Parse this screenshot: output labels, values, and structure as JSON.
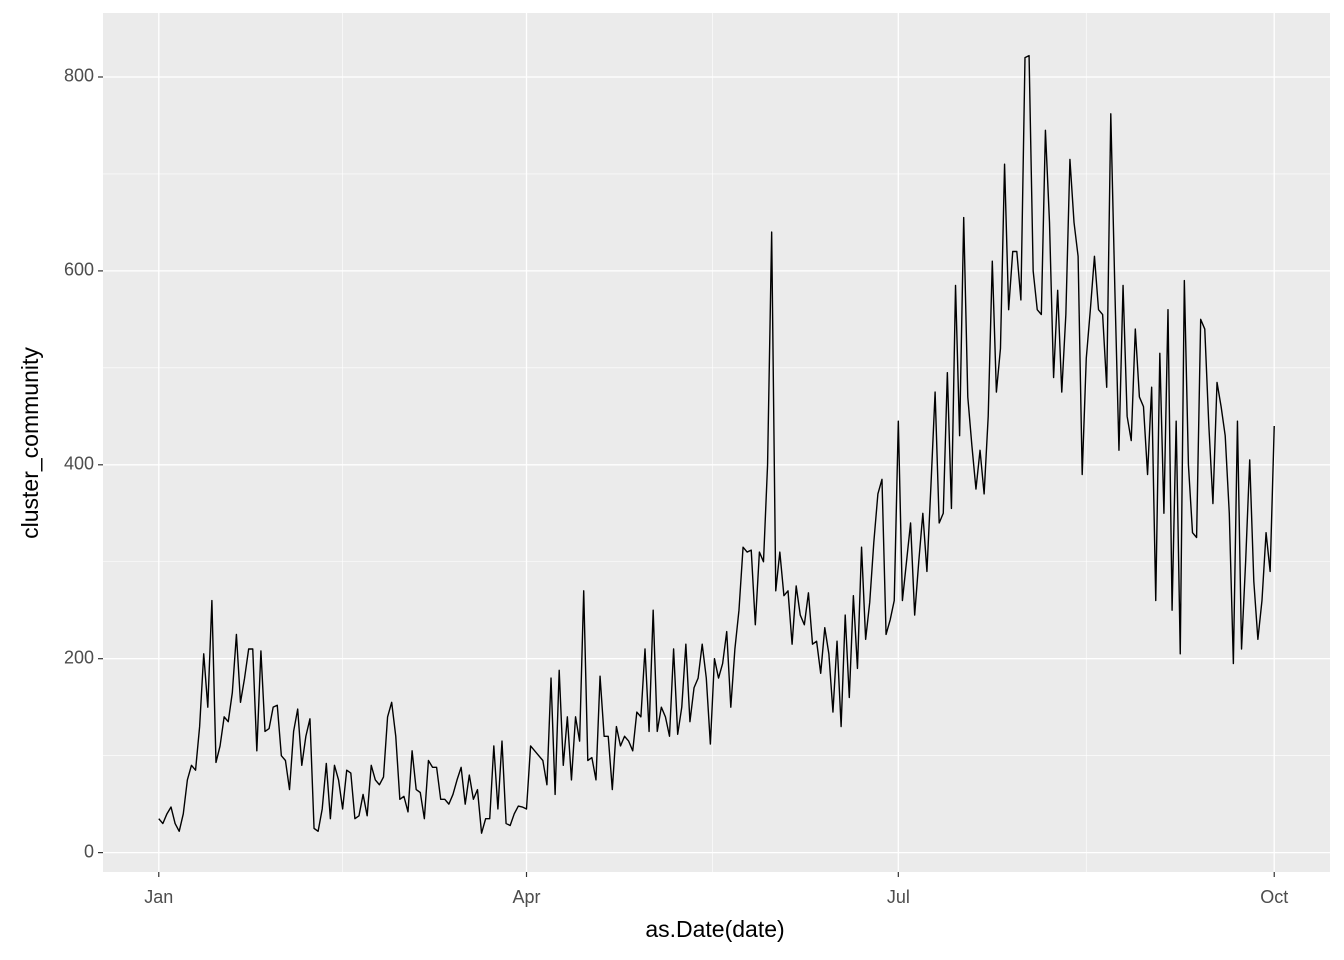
{
  "chart_data": {
    "type": "line",
    "x_label": "as.Date(date)",
    "y_label": "cluster_community",
    "categories": [
      "Jan",
      null,
      null,
      null,
      null,
      null,
      null,
      null,
      null,
      null,
      null,
      null,
      null,
      null,
      null,
      null,
      null,
      null,
      null,
      null,
      null,
      null,
      null,
      null,
      null,
      null,
      null,
      null,
      null,
      null,
      null,
      null,
      null,
      null,
      null,
      null,
      null,
      null,
      null,
      null,
      null,
      null,
      null,
      null,
      null,
      null,
      null,
      null,
      null,
      null,
      null,
      null,
      null,
      null,
      null,
      null,
      null,
      null,
      null,
      null,
      null,
      null,
      null,
      null,
      null,
      null,
      null,
      null,
      null,
      null,
      null,
      null,
      null,
      null,
      null,
      null,
      null,
      null,
      null,
      null,
      null,
      null,
      null,
      null,
      null,
      null,
      null,
      null,
      null,
      null,
      "Apr",
      null,
      null,
      null,
      null,
      null,
      null,
      null,
      null,
      null,
      null,
      null,
      null,
      null,
      null,
      null,
      null,
      null,
      null,
      null,
      null,
      null,
      null,
      null,
      null,
      null,
      null,
      null,
      null,
      null,
      null,
      null,
      null,
      null,
      null,
      null,
      null,
      null,
      null,
      null,
      null,
      null,
      null,
      null,
      null,
      null,
      null,
      null,
      null,
      null,
      null,
      null,
      null,
      null,
      null,
      null,
      null,
      null,
      null,
      null,
      null,
      null,
      null,
      null,
      null,
      null,
      null,
      null,
      null,
      null,
      null,
      null,
      null,
      null,
      null,
      null,
      null,
      null,
      null,
      null,
      null,
      null,
      null,
      null,
      null,
      null,
      null,
      null,
      null,
      null,
      null,
      "Jul",
      null,
      null,
      null,
      null,
      null,
      null,
      null,
      null,
      null,
      null,
      null,
      null,
      null,
      null,
      null,
      null,
      null,
      null,
      null,
      null,
      null,
      null,
      null,
      null,
      null,
      null,
      null,
      null,
      null,
      null,
      null,
      null,
      null,
      null,
      null,
      null,
      null,
      null,
      null,
      null,
      null,
      null,
      null,
      null,
      null,
      null,
      null,
      null,
      null,
      null,
      null,
      null,
      null,
      null,
      null,
      null,
      null,
      null,
      null,
      null,
      null,
      null,
      null,
      null,
      null,
      null,
      null,
      null,
      null,
      null,
      null,
      null,
      null,
      null,
      null,
      null,
      null,
      null,
      null,
      null,
      null,
      null,
      null,
      null,
      null,
      null,
      null,
      null,
      null,
      null,
      null,
      "Oct"
    ],
    "values": [
      35,
      30,
      40,
      47,
      30,
      22,
      40,
      75,
      90,
      85,
      130,
      205,
      150,
      260,
      93,
      110,
      140,
      135,
      165,
      225,
      155,
      180,
      210,
      210,
      105,
      208,
      125,
      128,
      150,
      152,
      100,
      95,
      65,
      125,
      148,
      90,
      120,
      138,
      25,
      22,
      45,
      92,
      35,
      90,
      75,
      45,
      85,
      82,
      35,
      38,
      60,
      38,
      90,
      75,
      70,
      78,
      140,
      155,
      120,
      55,
      58,
      42,
      105,
      65,
      62,
      35,
      95,
      88,
      88,
      55,
      55,
      50,
      60,
      75,
      88,
      50,
      80,
      55,
      65,
      20,
      35,
      35,
      110,
      45,
      115,
      30,
      28,
      40,
      48,
      47,
      45,
      110,
      105,
      100,
      95,
      70,
      180,
      60,
      188,
      90,
      140,
      75,
      140,
      115,
      270,
      95,
      98,
      75,
      182,
      120,
      120,
      65,
      130,
      110,
      120,
      115,
      105,
      145,
      140,
      210,
      125,
      250,
      125,
      150,
      140,
      120,
      210,
      122,
      150,
      215,
      135,
      170,
      180,
      215,
      180,
      112,
      200,
      180,
      195,
      228,
      150,
      210,
      250,
      315,
      310,
      312,
      235,
      310,
      300,
      400,
      640,
      270,
      310,
      265,
      270,
      215,
      275,
      245,
      235,
      268,
      215,
      218,
      185,
      232,
      205,
      145,
      218,
      130,
      245,
      160,
      265,
      190,
      315,
      220,
      258,
      320,
      370,
      385,
      225,
      240,
      260,
      445,
      260,
      300,
      340,
      245,
      300,
      350,
      290,
      380,
      475,
      340,
      350,
      495,
      355,
      585,
      430,
      655,
      470,
      420,
      375,
      415,
      370,
      450,
      610,
      475,
      520,
      710,
      560,
      620,
      620,
      570,
      820,
      822,
      600,
      560,
      555,
      745,
      650,
      490,
      580,
      475,
      555,
      715,
      650,
      615,
      390,
      510,
      560,
      615,
      560,
      555,
      480,
      762,
      580,
      415,
      585,
      450,
      425,
      540,
      470,
      460,
      390,
      480,
      260,
      515,
      350,
      560,
      250,
      445,
      205,
      590,
      400,
      330,
      325,
      550,
      540,
      440,
      360,
      485,
      460,
      430,
      350,
      195,
      445,
      210,
      300,
      405,
      280,
      220,
      260,
      330,
      290,
      440
    ],
    "color": "#000000",
    "ylim": [
      -20,
      866
    ],
    "yticks": [
      0,
      200,
      400,
      600,
      800
    ],
    "grid": true
  }
}
